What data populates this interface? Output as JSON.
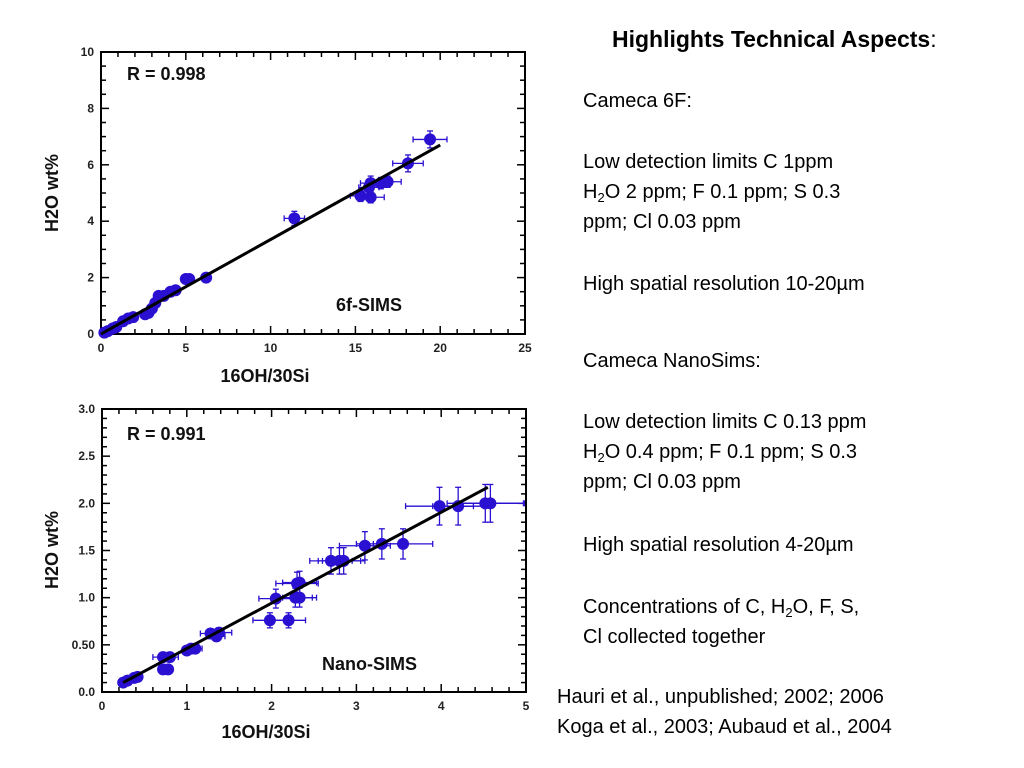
{
  "chart_data": [
    {
      "type": "scatter",
      "id": "top",
      "title": "",
      "xlabel": "16OH/30Si",
      "ylabel": "H2O wt%",
      "xlim": [
        0,
        25
      ],
      "ylim": [
        0,
        10
      ],
      "xticks": [
        0,
        5,
        10,
        15,
        20,
        25
      ],
      "yticks": [
        0,
        2,
        4,
        6,
        8,
        10
      ],
      "xtick_labels": [
        "0",
        "5",
        "10",
        "15",
        "20",
        "25"
      ],
      "ytick_labels": [
        "0",
        "2",
        "4",
        "6",
        "8",
        "10"
      ],
      "annotations": {
        "r_value": "R = 0.998",
        "instrument": "6f-SIMS"
      },
      "fit_line": {
        "x": [
          0,
          20
        ],
        "y": [
          0,
          6.7
        ]
      },
      "marker_color": "#2a10d0",
      "line_color": "#000000",
      "points": [
        {
          "x": 0.2,
          "y": 0.05
        },
        {
          "x": 0.4,
          "y": 0.1
        },
        {
          "x": 0.7,
          "y": 0.2
        },
        {
          "x": 0.9,
          "y": 0.25
        },
        {
          "x": 1.3,
          "y": 0.45
        },
        {
          "x": 1.6,
          "y": 0.55
        },
        {
          "x": 1.9,
          "y": 0.6
        },
        {
          "x": 2.6,
          "y": 0.7
        },
        {
          "x": 2.8,
          "y": 0.75
        },
        {
          "x": 3.0,
          "y": 0.9
        },
        {
          "x": 3.2,
          "y": 1.1
        },
        {
          "x": 3.4,
          "y": 1.35
        },
        {
          "x": 3.7,
          "y": 1.35
        },
        {
          "x": 4.1,
          "y": 1.5
        },
        {
          "x": 4.4,
          "y": 1.55
        },
        {
          "x": 5.0,
          "y": 1.95
        },
        {
          "x": 5.2,
          "y": 1.95
        },
        {
          "x": 6.2,
          "y": 2.0
        },
        {
          "x": 11.4,
          "y": 4.1,
          "xerr": 0.6,
          "yerr": 0.25
        },
        {
          "x": 15.3,
          "y": 4.9,
          "xerr": 0.6,
          "yerr": 0.2
        },
        {
          "x": 15.9,
          "y": 4.85,
          "xerr": 0.8,
          "yerr": 0.2
        },
        {
          "x": 15.8,
          "y": 5.2,
          "xerr": 0.6,
          "yerr": 0.25
        },
        {
          "x": 15.9,
          "y": 5.35,
          "xerr": 0.6,
          "yerr": 0.25
        },
        {
          "x": 16.5,
          "y": 5.35,
          "xerr": 0.6,
          "yerr": 0.2
        },
        {
          "x": 16.9,
          "y": 5.4,
          "xerr": 0.8,
          "yerr": 0.2
        },
        {
          "x": 18.1,
          "y": 6.05,
          "xerr": 0.9,
          "yerr": 0.3
        },
        {
          "x": 19.4,
          "y": 6.9,
          "xerr": 1.0,
          "yerr": 0.3
        }
      ]
    },
    {
      "type": "scatter",
      "id": "bottom",
      "title": "",
      "xlabel": "16OH/30Si",
      "ylabel": "H2O wt%",
      "xlim": [
        0,
        5
      ],
      "ylim": [
        0,
        3.0
      ],
      "xticks": [
        0,
        1,
        2,
        3,
        4,
        5
      ],
      "yticks": [
        0,
        0.5,
        1.0,
        1.5,
        2.0,
        2.5,
        3.0
      ],
      "xtick_labels": [
        "0",
        "1",
        "2",
        "3",
        "4",
        "5"
      ],
      "ytick_labels": [
        "0.0",
        "0.50",
        "1.0",
        "1.5",
        "2.0",
        "2.5",
        "3.0"
      ],
      "annotations": {
        "r_value": "R = 0.991",
        "instrument": "Nano-SIMS"
      },
      "fit_line": {
        "x": [
          0.25,
          4.55
        ],
        "y": [
          0.1,
          2.17
        ]
      },
      "marker_color": "#2a10d0",
      "line_color": "#000000",
      "points": [
        {
          "x": 0.25,
          "y": 0.1
        },
        {
          "x": 0.3,
          "y": 0.12
        },
        {
          "x": 0.38,
          "y": 0.15
        },
        {
          "x": 0.42,
          "y": 0.16
        },
        {
          "x": 0.72,
          "y": 0.37,
          "xerr": 0.12,
          "yerr": 0.05
        },
        {
          "x": 0.8,
          "y": 0.37,
          "xerr": 0.1,
          "yerr": 0.05
        },
        {
          "x": 0.72,
          "y": 0.24
        },
        {
          "x": 0.78,
          "y": 0.24
        },
        {
          "x": 1.0,
          "y": 0.44
        },
        {
          "x": 1.05,
          "y": 0.46
        },
        {
          "x": 1.1,
          "y": 0.46,
          "xerr": 0.08,
          "yerr": 0.04
        },
        {
          "x": 1.28,
          "y": 0.62,
          "xerr": 0.12,
          "yerr": 0.05
        },
        {
          "x": 1.35,
          "y": 0.59,
          "xerr": 0.1,
          "yerr": 0.05
        },
        {
          "x": 1.38,
          "y": 0.63,
          "xerr": 0.15,
          "yerr": 0.05
        },
        {
          "x": 1.98,
          "y": 0.76,
          "xerr": 0.2,
          "yerr": 0.08
        },
        {
          "x": 2.05,
          "y": 0.99,
          "xerr": 0.2,
          "yerr": 0.1
        },
        {
          "x": 2.2,
          "y": 0.76,
          "xerr": 0.2,
          "yerr": 0.08
        },
        {
          "x": 2.28,
          "y": 1.0,
          "xerr": 0.2,
          "yerr": 0.1
        },
        {
          "x": 2.33,
          "y": 1.0,
          "xerr": 0.2,
          "yerr": 0.1
        },
        {
          "x": 2.3,
          "y": 1.15,
          "xerr": 0.25,
          "yerr": 0.12
        },
        {
          "x": 2.33,
          "y": 1.16,
          "xerr": 0.2,
          "yerr": 0.12
        },
        {
          "x": 2.7,
          "y": 1.39,
          "xerr": 0.25,
          "yerr": 0.14
        },
        {
          "x": 2.8,
          "y": 1.39,
          "xerr": 0.25,
          "yerr": 0.14
        },
        {
          "x": 2.85,
          "y": 1.39,
          "xerr": 0.25,
          "yerr": 0.14
        },
        {
          "x": 3.1,
          "y": 1.55,
          "xerr": 0.3,
          "yerr": 0.15
        },
        {
          "x": 3.3,
          "y": 1.57,
          "xerr": 0.3,
          "yerr": 0.16
        },
        {
          "x": 3.55,
          "y": 1.57,
          "xerr": 0.35,
          "yerr": 0.16
        },
        {
          "x": 3.98,
          "y": 1.97,
          "xerr": 0.4,
          "yerr": 0.2
        },
        {
          "x": 4.2,
          "y": 1.97,
          "xerr": 0.3,
          "yerr": 0.2
        },
        {
          "x": 4.52,
          "y": 2.0,
          "xerr": 0.45,
          "yerr": 0.2
        },
        {
          "x": 4.58,
          "y": 2.0,
          "xerr": 0.4,
          "yerr": 0.2
        }
      ]
    }
  ],
  "panel": {
    "title": "Highlights Technical Aspects",
    "title_colon": ":",
    "cameca6f": {
      "heading": "Cameca 6F:",
      "limits_line1": "Low detection limits  C 1ppm",
      "limits_line2_pre": "H",
      "limits_line2_sub": "2",
      "limits_line2_post": "O  2 ppm; F 0.1 ppm; S 0.3",
      "limits_line3": "ppm; Cl 0.03 ppm",
      "resolution": "High spatial resolution 10-20µm"
    },
    "nanosims": {
      "heading": "Cameca NanoSims:",
      "limits_line1": "Low detection limits  C 0.13 ppm",
      "limits_line2_pre": "H",
      "limits_line2_sub": "2",
      "limits_line2_post": "O  0.4 ppm; F 0.1 ppm; S 0.3",
      "limits_line3": "ppm; Cl 0.03 ppm",
      "resolution": "High spatial resolution 4-20µm",
      "conc_line1_pre": "Concentrations of C, H",
      "conc_line1_sub": "2",
      "conc_line1_post": "O, F, S,",
      "conc_line2": "Cl collected together"
    },
    "references": [
      "Hauri et al., unpublished; 2002; 2006",
      "Koga et al., 2003; Aubaud et al., 2004"
    ]
  }
}
